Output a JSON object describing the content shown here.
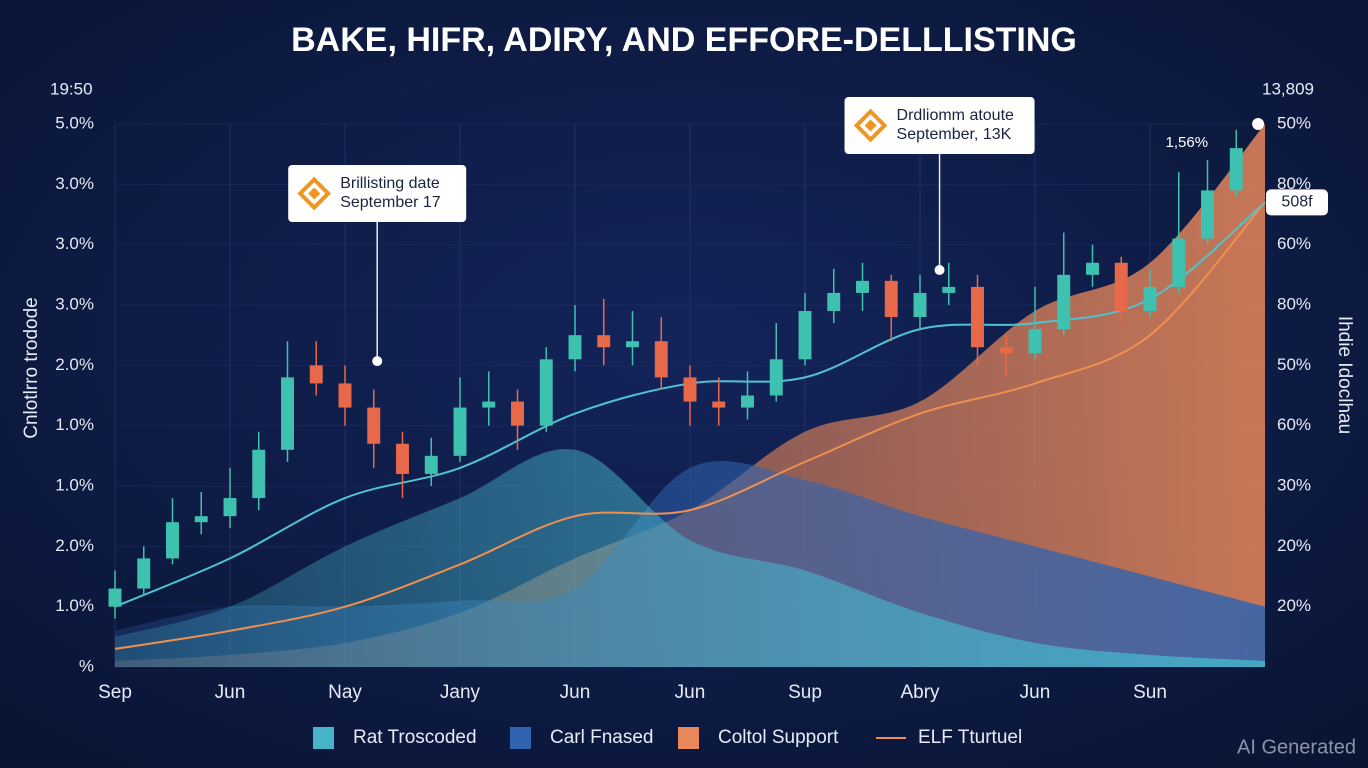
{
  "chart_data": {
    "type": "candlestick-area",
    "title": "BAKE, HIFR, ADIRY, AND EFFORE-DELLLISTING",
    "y_unit": "19:50",
    "y2_unit": "13,809",
    "ylabel": "Cnlotlrro trodode",
    "y2label": "Ihdie Idoclhau",
    "grid": true,
    "xlim": [
      0,
      10
    ],
    "ylim": [
      0,
      9
    ],
    "y2lim": [
      0,
      9
    ],
    "xticks": [
      {
        "value": 0,
        "label": "Sep"
      },
      {
        "value": 1,
        "label": "Jun"
      },
      {
        "value": 2,
        "label": "Nay"
      },
      {
        "value": 3,
        "label": "Jany"
      },
      {
        "value": 4,
        "label": "Jun"
      },
      {
        "value": 5,
        "label": "Jun"
      },
      {
        "value": 6,
        "label": "Sup"
      },
      {
        "value": 7,
        "label": "Abry"
      },
      {
        "value": 8,
        "label": "Jun"
      },
      {
        "value": 9,
        "label": "Sun"
      }
    ],
    "yticks": [
      {
        "value": 9,
        "label": "5.0%"
      },
      {
        "value": 8,
        "label": "3.0%"
      },
      {
        "value": 7,
        "label": "3.0%"
      },
      {
        "value": 6,
        "label": "3.0%"
      },
      {
        "value": 5,
        "label": "2.0%"
      },
      {
        "value": 4,
        "label": "1.0%"
      },
      {
        "value": 3,
        "label": "1.0%"
      },
      {
        "value": 2,
        "label": "2.0%"
      },
      {
        "value": 1,
        "label": "1.0%"
      },
      {
        "value": 0,
        "label": "%"
      }
    ],
    "y2ticks": [
      {
        "value": 9,
        "label": "50%"
      },
      {
        "value": 8,
        "label": "80%"
      },
      {
        "value": 7,
        "label": "60%"
      },
      {
        "value": 6,
        "label": "80%"
      },
      {
        "value": 5,
        "label": "50%"
      },
      {
        "value": 4,
        "label": "60%"
      },
      {
        "value": 3,
        "label": "30%"
      },
      {
        "value": 2,
        "label": "20%"
      },
      {
        "value": 1,
        "label": "20%"
      }
    ],
    "y2_marker": {
      "value": 7.7,
      "label": "508f"
    },
    "x": [
      0,
      1,
      2,
      3,
      4,
      5,
      6,
      7,
      8,
      9,
      10
    ],
    "series": [
      {
        "name": "Coltol Support",
        "kind": "area",
        "color": "#e8875a",
        "values": [
          0.1,
          0.2,
          0.4,
          0.9,
          1.8,
          2.6,
          3.9,
          4.4,
          5.9,
          6.7,
          9.0
        ]
      },
      {
        "name": "Carl Fnased",
        "kind": "area",
        "color": "#2f63b0",
        "values": [
          0.6,
          1.0,
          1.0,
          1.1,
          1.3,
          3.3,
          3.1,
          2.5,
          2.0,
          1.5,
          1.0
        ]
      },
      {
        "name": "Rat Troscoded",
        "kind": "area",
        "color": "#46b3c9",
        "values": [
          0.5,
          1.0,
          2.0,
          2.8,
          3.6,
          2.1,
          1.6,
          0.9,
          0.4,
          0.2,
          0.1
        ]
      },
      {
        "name": "ELF Tturtuel",
        "kind": "line",
        "color": "#f0904f",
        "values": [
          0.3,
          0.6,
          1.0,
          1.7,
          2.5,
          2.6,
          3.4,
          4.2,
          4.7,
          5.5,
          7.7
        ]
      },
      {
        "kind": "line",
        "color": "#4fc3d0",
        "values": [
          1.0,
          1.8,
          2.8,
          3.3,
          4.2,
          4.7,
          4.8,
          5.6,
          5.7,
          6.1,
          7.7
        ]
      }
    ],
    "candles": {
      "up_color": "#3fc1b0",
      "down_color": "#e8694a",
      "points": [
        {
          "x": 0,
          "open": 1.0,
          "high": 1.6,
          "low": 0.8,
          "close": 1.3
        },
        {
          "x": 0.25,
          "open": 1.3,
          "high": 2.0,
          "low": 1.2,
          "close": 1.8
        },
        {
          "x": 0.5,
          "open": 1.8,
          "high": 2.8,
          "low": 1.7,
          "close": 2.4
        },
        {
          "x": 0.75,
          "open": 2.4,
          "high": 2.9,
          "low": 2.2,
          "close": 2.5
        },
        {
          "x": 1.0,
          "open": 2.5,
          "high": 3.3,
          "low": 2.3,
          "close": 2.8
        },
        {
          "x": 1.25,
          "open": 2.8,
          "high": 3.9,
          "low": 2.6,
          "close": 3.6
        },
        {
          "x": 1.5,
          "open": 3.6,
          "high": 5.4,
          "low": 3.4,
          "close": 4.8
        },
        {
          "x": 1.75,
          "open": 5.0,
          "high": 5.4,
          "low": 4.5,
          "close": 4.7
        },
        {
          "x": 2.0,
          "open": 4.7,
          "high": 5.0,
          "low": 4.0,
          "close": 4.3
        },
        {
          "x": 2.25,
          "open": 4.3,
          "high": 4.6,
          "low": 3.3,
          "close": 3.7
        },
        {
          "x": 2.5,
          "open": 3.7,
          "high": 3.9,
          "low": 2.8,
          "close": 3.2
        },
        {
          "x": 2.75,
          "open": 3.2,
          "high": 3.8,
          "low": 3.0,
          "close": 3.5
        },
        {
          "x": 3.0,
          "open": 3.5,
          "high": 4.8,
          "low": 3.4,
          "close": 4.3
        },
        {
          "x": 3.25,
          "open": 4.3,
          "high": 4.9,
          "low": 4.0,
          "close": 4.4
        },
        {
          "x": 3.5,
          "open": 4.4,
          "high": 4.6,
          "low": 3.6,
          "close": 4.0
        },
        {
          "x": 3.75,
          "open": 4.0,
          "high": 5.3,
          "low": 3.9,
          "close": 5.1
        },
        {
          "x": 4.0,
          "open": 5.1,
          "high": 6.0,
          "low": 4.9,
          "close": 5.5
        },
        {
          "x": 4.25,
          "open": 5.5,
          "high": 6.1,
          "low": 5.0,
          "close": 5.3
        },
        {
          "x": 4.5,
          "open": 5.3,
          "high": 5.9,
          "low": 5.0,
          "close": 5.4
        },
        {
          "x": 4.75,
          "open": 5.4,
          "high": 5.8,
          "low": 4.6,
          "close": 4.8
        },
        {
          "x": 5.0,
          "open": 4.8,
          "high": 5.0,
          "low": 4.0,
          "close": 4.4
        },
        {
          "x": 5.25,
          "open": 4.4,
          "high": 4.8,
          "low": 4.0,
          "close": 4.3
        },
        {
          "x": 5.5,
          "open": 4.3,
          "high": 4.9,
          "low": 4.1,
          "close": 4.5
        },
        {
          "x": 5.75,
          "open": 4.5,
          "high": 5.7,
          "low": 4.4,
          "close": 5.1
        },
        {
          "x": 6.0,
          "open": 5.1,
          "high": 6.2,
          "low": 5.0,
          "close": 5.9
        },
        {
          "x": 6.25,
          "open": 5.9,
          "high": 6.6,
          "low": 5.7,
          "close": 6.2
        },
        {
          "x": 6.5,
          "open": 6.2,
          "high": 6.7,
          "low": 5.9,
          "close": 6.4
        },
        {
          "x": 6.75,
          "open": 6.4,
          "high": 6.5,
          "low": 5.4,
          "close": 5.8
        },
        {
          "x": 7.0,
          "open": 5.8,
          "high": 6.5,
          "low": 5.6,
          "close": 6.2
        },
        {
          "x": 7.25,
          "open": 6.2,
          "high": 6.7,
          "low": 6.0,
          "close": 6.3
        },
        {
          "x": 7.5,
          "open": 6.3,
          "high": 6.5,
          "low": 5.0,
          "close": 5.3
        },
        {
          "x": 7.75,
          "open": 5.3,
          "high": 5.5,
          "low": 4.8,
          "close": 5.2
        },
        {
          "x": 8.0,
          "open": 5.2,
          "high": 6.3,
          "low": 5.1,
          "close": 5.6
        },
        {
          "x": 8.25,
          "open": 5.6,
          "high": 7.2,
          "low": 5.5,
          "close": 6.5
        },
        {
          "x": 8.5,
          "open": 6.5,
          "high": 7.0,
          "low": 6.3,
          "close": 6.7
        },
        {
          "x": 8.75,
          "open": 6.7,
          "high": 6.8,
          "low": 5.7,
          "close": 5.9
        },
        {
          "x": 9.0,
          "open": 5.9,
          "high": 6.6,
          "low": 5.8,
          "close": 6.3
        },
        {
          "x": 9.25,
          "open": 6.3,
          "high": 8.2,
          "low": 6.2,
          "close": 7.1
        },
        {
          "x": 9.5,
          "open": 7.1,
          "high": 8.4,
          "low": 7.0,
          "close": 7.9
        },
        {
          "x": 9.75,
          "open": 7.9,
          "high": 8.9,
          "low": 7.8,
          "close": 8.6
        }
      ]
    },
    "annotations": [
      {
        "lines": [
          "Brillisting date",
          "September 17"
        ],
        "x": 2.28,
        "y": 5.07
      },
      {
        "lines": [
          "Drdliomm atoute",
          "September, 13K"
        ],
        "x": 7.17,
        "y": 6.58
      }
    ],
    "peak_label": {
      "text": "1,56%",
      "x": 9.94,
      "y": 9.0
    }
  },
  "watermark": "AI Generated"
}
